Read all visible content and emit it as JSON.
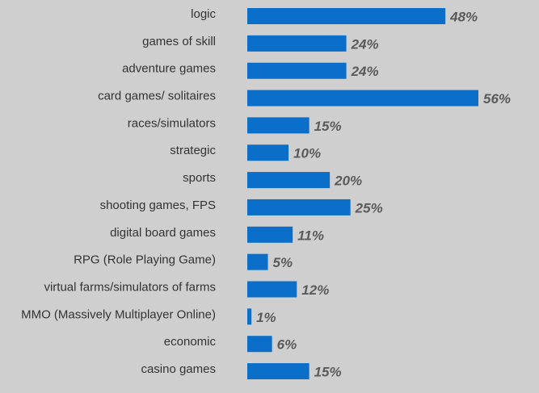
{
  "chart_data": {
    "type": "bar",
    "orientation": "horizontal",
    "categories": [
      "logic",
      "games of skill",
      "adventure games",
      "card games/ solitaires",
      "races/simulators",
      "strategic",
      "sports",
      "shooting games, FPS",
      "digital board games",
      "RPG (Role Playing Game)",
      "virtual farms/simulators of farms",
      "MMO (Massively Multiplayer Online)",
      "economic",
      "casino games"
    ],
    "values": [
      48,
      24,
      24,
      56,
      15,
      10,
      20,
      25,
      11,
      5,
      12,
      1,
      6,
      15
    ],
    "value_labels": [
      "48%",
      "24%",
      "24%",
      "56%",
      "15%",
      "10%",
      "20%",
      "25%",
      "11%",
      "5%",
      "12%",
      "1%",
      "6%",
      "15%"
    ],
    "xlim": [
      0,
      56
    ],
    "grid": false,
    "legend": "none",
    "bar_color": "#0b6fc9",
    "background_color": "#cfcfcf",
    "label_color": "#333333",
    "value_label_color": "#5a5a5a"
  }
}
